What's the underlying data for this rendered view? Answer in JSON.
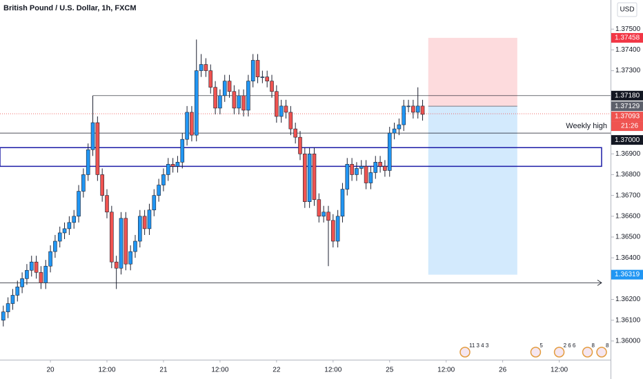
{
  "chart_data": {
    "type": "candlestick",
    "title": "British Pound / U.S. Dollar, 1h, FXCM",
    "currency": "USD",
    "up_color": "#2196f3",
    "down_color": "#ef5350",
    "border_color": "#1c2030",
    "x": [
      -10,
      -9,
      -8,
      -7,
      -6,
      -5,
      -4,
      -3,
      -2,
      -1,
      0,
      1,
      2,
      3,
      4,
      5,
      6,
      7,
      8,
      9,
      10,
      11,
      12,
      13,
      14,
      15,
      16,
      17,
      18,
      19,
      20,
      21,
      22,
      23,
      24,
      25,
      26,
      27,
      28,
      29,
      30,
      31,
      32,
      33,
      34,
      35,
      36,
      37,
      38,
      39,
      40,
      41,
      42,
      43,
      44,
      45,
      46,
      47,
      48,
      49,
      50,
      51,
      52,
      53,
      54,
      55,
      56,
      57,
      58,
      59,
      60,
      61,
      62,
      63,
      64,
      65,
      66,
      67,
      68,
      69,
      70,
      71,
      72,
      73,
      74,
      75,
      76,
      77,
      78,
      79
    ],
    "open": [
      1.361,
      1.3614,
      1.3618,
      1.3622,
      1.3626,
      1.363,
      1.3634,
      1.3638,
      1.3633,
      1.3628,
      1.3636,
      1.3643,
      1.3648,
      1.3652,
      1.3654,
      1.3657,
      1.366,
      1.3672,
      1.368,
      1.3692,
      1.3705,
      1.368,
      1.367,
      1.3662,
      1.3638,
      1.3635,
      1.3659,
      1.3637,
      1.3643,
      1.3648,
      1.366,
      1.3654,
      1.3663,
      1.367,
      1.3675,
      1.368,
      1.3685,
      1.3684,
      1.3686,
      1.3697,
      1.371,
      1.3699,
      1.373,
      1.3733,
      1.373,
      1.3722,
      1.3712,
      1.3718,
      1.3725,
      1.372,
      1.3712,
      1.3718,
      1.3711,
      1.3725,
      1.3735,
      1.3727,
      1.3727,
      1.3725,
      1.372,
      1.3708,
      1.3713,
      1.371,
      1.3702,
      1.3698,
      1.369,
      1.3667,
      1.369,
      1.3668,
      1.366,
      1.3662,
      1.3658,
      1.3648,
      1.366,
      1.3673,
      1.3685,
      1.368,
      1.3683,
      1.3684,
      1.3676,
      1.3681,
      1.3686,
      1.3684,
      1.3682,
      1.37,
      1.3702,
      1.3704,
      1.3713,
      1.3713,
      1.371,
      1.3713
    ],
    "high": [
      1.3617,
      1.3621,
      1.3625,
      1.3629,
      1.3633,
      1.3637,
      1.3641,
      1.3641,
      1.3636,
      1.3639,
      1.3646,
      1.3651,
      1.3655,
      1.3657,
      1.366,
      1.3663,
      1.3675,
      1.3683,
      1.3695,
      1.3718,
      1.3708,
      1.3683,
      1.3673,
      1.3665,
      1.3641,
      1.3662,
      1.3662,
      1.3646,
      1.3651,
      1.3663,
      1.3663,
      1.3666,
      1.3673,
      1.3678,
      1.3683,
      1.3688,
      1.3688,
      1.3689,
      1.37,
      1.3713,
      1.3713,
      1.3745,
      1.3738,
      1.3736,
      1.3733,
      1.3725,
      1.3721,
      1.3728,
      1.3728,
      1.3723,
      1.3721,
      1.3721,
      1.3728,
      1.3738,
      1.3738,
      1.373,
      1.373,
      1.3728,
      1.3723,
      1.3716,
      1.3716,
      1.3713,
      1.3705,
      1.3701,
      1.3693,
      1.3693,
      1.3693,
      1.3671,
      1.3665,
      1.3665,
      1.3661,
      1.3663,
      1.3676,
      1.3688,
      1.3688,
      1.3686,
      1.3687,
      1.3687,
      1.3684,
      1.3689,
      1.3689,
      1.3687,
      1.3703,
      1.3705,
      1.3707,
      1.3716,
      1.3716,
      1.3716,
      1.3722,
      1.3716
    ],
    "low": [
      1.3607,
      1.3611,
      1.3615,
      1.3619,
      1.3623,
      1.3627,
      1.3631,
      1.363,
      1.3625,
      1.3625,
      1.3633,
      1.364,
      1.3645,
      1.3649,
      1.3651,
      1.3654,
      1.3657,
      1.3669,
      1.3677,
      1.3689,
      1.3677,
      1.3667,
      1.3659,
      1.3635,
      1.3625,
      1.3632,
      1.3634,
      1.3634,
      1.364,
      1.3645,
      1.3651,
      1.3651,
      1.366,
      1.3667,
      1.3672,
      1.3677,
      1.3681,
      1.3681,
      1.3683,
      1.3694,
      1.3696,
      1.3696,
      1.3727,
      1.3727,
      1.3719,
      1.3709,
      1.3709,
      1.3715,
      1.3717,
      1.3709,
      1.3709,
      1.3708,
      1.3708,
      1.3722,
      1.3724,
      1.3724,
      1.3722,
      1.3717,
      1.3705,
      1.3705,
      1.3707,
      1.3699,
      1.3695,
      1.3687,
      1.3664,
      1.3664,
      1.3665,
      1.3657,
      1.3657,
      1.3636,
      1.3645,
      1.3645,
      1.3657,
      1.367,
      1.3677,
      1.3677,
      1.368,
      1.3673,
      1.3673,
      1.3678,
      1.3681,
      1.3679,
      1.3679,
      1.3697,
      1.3699,
      1.3701,
      1.371,
      1.3707,
      1.3707,
      1.3706
    ],
    "close": [
      1.3614,
      1.3618,
      1.3622,
      1.3626,
      1.363,
      1.3634,
      1.3638,
      1.3633,
      1.3628,
      1.3636,
      1.3643,
      1.3648,
      1.3652,
      1.3654,
      1.3657,
      1.366,
      1.3672,
      1.368,
      1.3692,
      1.3705,
      1.368,
      1.367,
      1.3662,
      1.3638,
      1.3635,
      1.3659,
      1.3637,
      1.3643,
      1.3648,
      1.366,
      1.3654,
      1.3663,
      1.367,
      1.3675,
      1.368,
      1.3685,
      1.3684,
      1.3686,
      1.3697,
      1.371,
      1.3699,
      1.373,
      1.3733,
      1.373,
      1.3722,
      1.3712,
      1.3718,
      1.3725,
      1.372,
      1.3712,
      1.3718,
      1.3711,
      1.3725,
      1.3735,
      1.3727,
      1.3727,
      1.3725,
      1.372,
      1.3708,
      1.3713,
      1.371,
      1.3702,
      1.3698,
      1.369,
      1.3667,
      1.369,
      1.3668,
      1.366,
      1.3662,
      1.3658,
      1.3648,
      1.366,
      1.3673,
      1.3685,
      1.368,
      1.3683,
      1.3684,
      1.3676,
      1.3681,
      1.3686,
      1.3684,
      1.3682,
      1.37,
      1.3702,
      1.3704,
      1.3713,
      1.3713,
      1.371,
      1.3713,
      1.3709
    ],
    "xlim": [
      -10.7,
      118.9
    ],
    "ylim": [
      1.3591,
      1.3764
    ],
    "xticks": [
      {
        "value": 0,
        "label": "20"
      },
      {
        "value": 12,
        "label": "12:00"
      },
      {
        "value": 24,
        "label": "21"
      },
      {
        "value": 36,
        "label": "12:00"
      },
      {
        "value": 48,
        "label": "22"
      },
      {
        "value": 60,
        "label": "12:00"
      },
      {
        "value": 72,
        "label": "25"
      },
      {
        "value": 84,
        "label": "12:00"
      },
      {
        "value": 96,
        "label": "26"
      },
      {
        "value": 108,
        "label": "12:00"
      }
    ],
    "yticks": [
      {
        "value": 1.36,
        "label": "1.36000"
      },
      {
        "value": 1.361,
        "label": "1.36100"
      },
      {
        "value": 1.362,
        "label": "1.36200"
      },
      {
        "value": 1.364,
        "label": "1.36400"
      },
      {
        "value": 1.365,
        "label": "1.36500"
      },
      {
        "value": 1.366,
        "label": "1.36600"
      },
      {
        "value": 1.367,
        "label": "1.36700"
      },
      {
        "value": 1.368,
        "label": "1.36800"
      },
      {
        "value": 1.369,
        "label": "1.36900"
      },
      {
        "value": 1.373,
        "label": "1.37300"
      },
      {
        "value": 1.374,
        "label": "1.37400"
      },
      {
        "value": 1.375,
        "label": "1.37500"
      }
    ],
    "price_lines": [
      {
        "value": 1.3718,
        "label": "1.37180",
        "start": 9,
        "color": "#131722"
      },
      {
        "value": 1.37,
        "label": "1.37000",
        "text": "Weekly high",
        "start": -10.7,
        "color": "#131722"
      }
    ],
    "current_price": {
      "value": 1.37093,
      "label": "1.37093",
      "countdown": "21:26",
      "color": "#ef5350"
    },
    "zone": {
      "low": 1.3684,
      "high": 1.3693,
      "color": "#1a1aa6"
    },
    "arrow_line": {
      "value": 1.3628,
      "color": "#131722"
    },
    "position": {
      "start": 80.2,
      "end": 99.1,
      "stop": 1.37458,
      "stop_label": "1.37458",
      "entry": 1.37129,
      "entry_label": "1.37129",
      "target": 1.36319,
      "target_label": "1.36319"
    },
    "events": [
      {
        "x": 88,
        "label": "11 3 4 3"
      },
      {
        "x": 103,
        "label": "5"
      },
      {
        "x": 108,
        "label": "2 6 6"
      },
      {
        "x": 114,
        "label": "8"
      },
      {
        "x": 117,
        "label": "8"
      }
    ]
  }
}
